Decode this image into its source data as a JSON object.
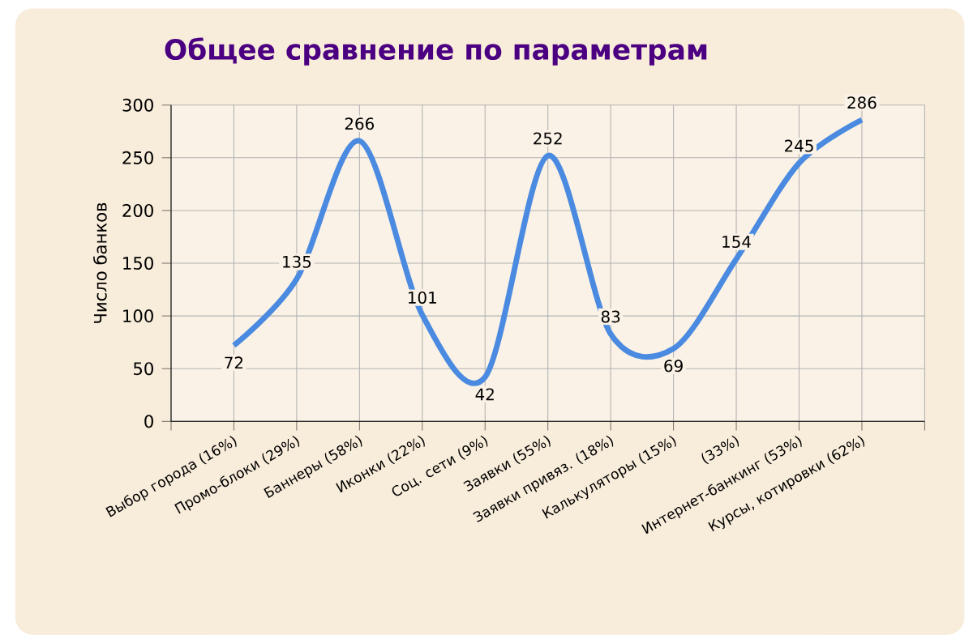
{
  "chart_data": {
    "type": "line",
    "title": "Общее сравнение по параметрам",
    "ylabel": "Число банков",
    "categories": [
      "Выбор города (16%)",
      "Промо-блоки (29%)",
      "Баннеры (58%)",
      "Иконки (22%)",
      "Соц. сети (9%)",
      "Заявки (55%)",
      "Заявки привяз. (18%)",
      "Калькуляторы (15%)",
      "(33%)",
      "Интернет-банкинг (53%)",
      "Курсы, котировки (62%)"
    ],
    "series": [
      {
        "color": "#4a8ae0",
        "values": [
          72,
          135,
          266,
          101,
          42,
          252,
          83,
          69,
          154,
          245,
          286
        ]
      }
    ],
    "ylim": [
      0,
      300
    ],
    "yticks": [
      0,
      50,
      100,
      150,
      200,
      250,
      300
    ],
    "grid": true,
    "data_labels": true,
    "marker": "none",
    "line_style": "solid"
  }
}
